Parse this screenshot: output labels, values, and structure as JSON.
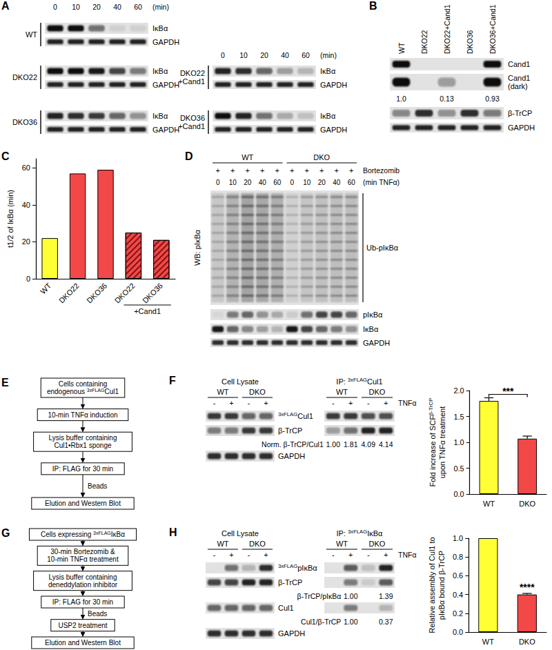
{
  "chart_data": [
    {
      "type": "bar",
      "categories": [
        "WT",
        "DKO22",
        "DKO36",
        "DKO22",
        "DKO36"
      ],
      "values": [
        22,
        57,
        59,
        25,
        21
      ],
      "colors": [
        "#ffff33",
        "#f24848",
        "#f24848",
        "#f24848",
        "#f24848"
      ],
      "ylabel": "t1/2 of IκBα (min)",
      "ylim": [
        0,
        65
      ],
      "yticks": [
        0,
        20,
        40,
        60
      ],
      "grid": false,
      "annotations": [
        {
          "text": "+Cand1",
          "from": 3,
          "to": 4,
          "position": "below"
        }
      ]
    },
    {
      "type": "bar",
      "categories": [
        "WT",
        "DKO"
      ],
      "values": [
        1.8,
        1.07
      ],
      "errors": [
        0.06,
        0.05
      ],
      "colors": [
        "#ffff33",
        "#f24848"
      ],
      "ylabel": [
        [
          "Fold increase of SCF",
          {
            "sup": "β-TrCP"
          }
        ],
        [
          "upon TNFα treatment"
        ]
      ],
      "ylim": [
        0,
        2
      ],
      "yticks": [
        {
          "value": 0,
          "label": "0.0"
        },
        0.5,
        {
          "value": 1,
          "label": "1.0"
        },
        1.5,
        {
          "value": 2,
          "label": "2.0"
        }
      ],
      "grid": false,
      "annotations": [
        {
          "text": "***",
          "from": 0,
          "to": 1,
          "position": "above"
        }
      ]
    },
    {
      "type": "bar",
      "categories": [
        "WT",
        "DKO"
      ],
      "values": [
        1.0,
        0.4
      ],
      "errors": [
        null,
        0.012
      ],
      "colors": [
        "#ffff33",
        "#f24848"
      ],
      "ylabel": [
        [
          "Relative assembly of Cul1 to"
        ],
        [
          "pIκBα bound β-TrCP"
        ]
      ],
      "ylim": [
        0,
        1
      ],
      "yticks": [
        {
          "value": 0,
          "label": "0.0"
        },
        0.2,
        0.4,
        0.6,
        0.8,
        {
          "value": 1,
          "label": "1.0"
        }
      ],
      "grid": false,
      "annotations": [
        {
          "text": "****",
          "from": 1,
          "to": 1,
          "position": "above"
        }
      ]
    }
  ],
  "figure": {
    "A": {
      "label": "A",
      "time": {
        "values": [
          0,
          10,
          20,
          40,
          60
        ],
        "unit": "(min)"
      },
      "columns": [
        [
          {
            "name": [
              "WT"
            ],
            "rows": [
              {
                "label": "IκBα",
                "bands": [
                  1,
                  1,
                  0.55,
                  0.08,
                  0.08
                ]
              },
              {
                "label": "GAPDH",
                "bands": [
                  0.9,
                  0.9,
                  0.9,
                  0.9,
                  0.9
                ]
              }
            ]
          },
          {
            "name": [
              "DKO22"
            ],
            "rows": [
              {
                "label": "IκBα",
                "bands": [
                  1,
                  1,
                  0.95,
                  0.75,
                  0.5
                ]
              },
              {
                "label": "GAPDH",
                "bands": [
                  0.9,
                  0.9,
                  0.9,
                  0.9,
                  0.9
                ]
              }
            ]
          },
          {
            "name": [
              "DKO36"
            ],
            "rows": [
              {
                "label": "IκBα",
                "bands": [
                  0.9,
                  0.85,
                  0.8,
                  0.6,
                  0.4
                ]
              },
              {
                "label": "GAPDH",
                "bands": [
                  0.9,
                  0.9,
                  0.9,
                  0.9,
                  0.9
                ]
              }
            ]
          }
        ],
        [
          {
            "name": [
              "DKO22",
              "+Cand1"
            ],
            "rows": [
              {
                "label": "IκBα",
                "bands": [
                  0.9,
                  0.85,
                  0.6,
                  0.3,
                  0.2
                ]
              },
              {
                "label": "GAPDH",
                "bands": [
                  0.9,
                  0.9,
                  0.9,
                  0.9,
                  0.9
                ]
              }
            ]
          },
          {
            "name": [
              "DKO36",
              "+Cand1"
            ],
            "rows": [
              {
                "label": "IκBα",
                "bands": [
                  1,
                  0.9,
                  0.55,
                  0.25,
                  0.15
                ]
              },
              {
                "label": "GAPDH",
                "bands": [
                  0.9,
                  0.9,
                  0.9,
                  0.9,
                  0.9
                ]
              }
            ]
          }
        ]
      ]
    },
    "B": {
      "label": "B",
      "lanes": [
        "WT",
        "DKO22",
        "DKO22+Cand1",
        "DKO36",
        "DKO36+Cand1"
      ],
      "rows": [
        {
          "label": [
            "Cand1"
          ],
          "bands": [
            1,
            0,
            0,
            0,
            1
          ]
        },
        {
          "label": [
            "Cand1",
            "(dark)"
          ],
          "bands": [
            1,
            0,
            0.35,
            0,
            1
          ]
        },
        {
          "values": [
            "1.0",
            null,
            "0.13",
            null,
            "0.93"
          ]
        },
        {
          "label": [
            "β-TrCP"
          ],
          "bands": [
            0.45,
            0.85,
            0.4,
            0.85,
            0.5
          ]
        },
        {
          "label": [
            "GAPDH"
          ],
          "bands": [
            0.9,
            0.9,
            0.9,
            0.9,
            0.9
          ]
        }
      ]
    },
    "C": {
      "label": "C"
    },
    "D": {
      "label": "D",
      "groups": [
        "WT",
        "DKO"
      ],
      "treatment": {
        "label": "Bortezomib",
        "marks": [
          "+",
          "+",
          "+",
          "+",
          "+",
          "+",
          "+",
          "+",
          "+",
          "+"
        ]
      },
      "time": {
        "values": [
          0,
          10,
          20,
          40,
          60,
          0,
          10,
          20,
          40,
          60
        ],
        "unit": "(min TNFα)"
      },
      "wb_label": "WB: pIκBα",
      "smear": {
        "label": "Ub-pIκBα",
        "bands": [
          0.35,
          0.7,
          0.9,
          0.85,
          0.75,
          0.3,
          0.45,
          0.5,
          0.55,
          0.55
        ]
      },
      "rows": [
        {
          "label": "pIκBα",
          "bands": [
            0.05,
            0.5,
            0.6,
            0.4,
            0.25,
            0.1,
            0.55,
            0.75,
            0.75,
            0.6
          ]
        },
        {
          "label": "IκBα",
          "bands": [
            0.95,
            0.6,
            0.45,
            0.3,
            0.2,
            0.95,
            0.75,
            0.6,
            0.5,
            0.4
          ]
        },
        {
          "label": "GAPDH",
          "bands": [
            0.85,
            0.85,
            0.85,
            0.85,
            0.85,
            0.85,
            0.85,
            0.85,
            0.85,
            0.85
          ]
        }
      ]
    },
    "E": {
      "label": "E",
      "steps": [
        {
          "lines": [
            "Cells containing",
            [
              "endogenous ",
              {
                "sup": "3xFLAG"
              },
              "Cul1"
            ]
          ]
        },
        {
          "lines": [
            "10-min TNFα induction"
          ]
        },
        {
          "lines": [
            "Lysis buffer containing",
            "Cul1•Rbx1 sponge"
          ]
        },
        {
          "lines": [
            "IP: FLAG for 30 min"
          ],
          "arrow_label": "Beads"
        },
        {
          "lines": [
            "Elution and Western Blot"
          ]
        }
      ]
    },
    "F": {
      "label": "F",
      "lysate_title": "Cell Lysate",
      "ip_title": [
        "IP: ",
        {
          "sup": "3xFLAG"
        },
        "Cul1"
      ],
      "groups": [
        "WT",
        "DKO"
      ],
      "treatment": {
        "label": "TNFα",
        "marks": [
          "-",
          "+",
          "-",
          "+"
        ]
      },
      "rows": [
        {
          "label": [
            {
              "sup": "3xFLAG"
            },
            "Cul1"
          ],
          "lysate": [
            0.8,
            0.8,
            0.6,
            0.6
          ],
          "ip": [
            0.8,
            0.8,
            0.7,
            0.7
          ]
        },
        {
          "label": "β-TrCP",
          "lysate": [
            0.5,
            0.5,
            0.8,
            0.8
          ],
          "ip": [
            0.35,
            0.55,
            0.9,
            0.9
          ]
        },
        {
          "quant_label": "Norm. β-TrCP/Cul1",
          "ip_values": [
            "1.00",
            "1.81",
            "4.09",
            "4.14"
          ]
        },
        {
          "label": "GAPDH",
          "lysate": [
            0.85,
            0.85,
            0.85,
            0.85
          ]
        }
      ]
    },
    "G": {
      "label": "G",
      "steps": [
        {
          "lines": [
            [
              "Cells expressing ",
              {
                "sup": "3xFLAG"
              },
              "IκBα"
            ]
          ]
        },
        {
          "lines": [
            "30-min Bortezomib &",
            "10-min TNFα treatment"
          ]
        },
        {
          "lines": [
            "Lysis buffer containing",
            "deneddylation inhibitor"
          ]
        },
        {
          "lines": [
            "IP: FLAG for 30 min"
          ],
          "arrow_label": "Beads"
        },
        {
          "lines": [
            "USP2 treatment"
          ]
        },
        {
          "lines": [
            "Elution and Western Blot"
          ]
        }
      ]
    },
    "H": {
      "label": "H",
      "lysate_title": "Cell Lysate",
      "ip_title": [
        "IP: ",
        {
          "sup": "3xFLAG"
        },
        "IκBα"
      ],
      "groups": [
        "WT",
        "DKO"
      ],
      "treatment": {
        "label": "TNFα",
        "marks": [
          "-",
          "+",
          "-",
          "+"
        ]
      },
      "rows": [
        {
          "label": [
            {
              "sup": "3xFLAG"
            },
            "pIκBα"
          ],
          "lysate": [
            0,
            0.55,
            0.2,
            0.85
          ],
          "ip": [
            0,
            0.65,
            0.15,
            0.9
          ]
        },
        {
          "label": "β-TrCP",
          "lysate": [
            0.75,
            0.75,
            0.9,
            0.9
          ],
          "ip": [
            0,
            0.5,
            0.1,
            0.65
          ]
        },
        {
          "quant_label": "β-TrCP/pIκBα",
          "ip_values": [
            null,
            "1.00",
            null,
            "1.39"
          ]
        },
        {
          "label": "Cul1",
          "lysate": [
            0.6,
            0.6,
            0.6,
            0.6
          ],
          "ip": [
            0,
            0.5,
            0,
            0.2
          ]
        },
        {
          "quant_label": "Cul1/β-TrCP",
          "ip_values": [
            null,
            "1.00",
            null,
            "0.37"
          ]
        },
        {
          "label": "GAPDH",
          "lysate": [
            0.85,
            0.85,
            0.85,
            0.85
          ]
        }
      ]
    }
  }
}
